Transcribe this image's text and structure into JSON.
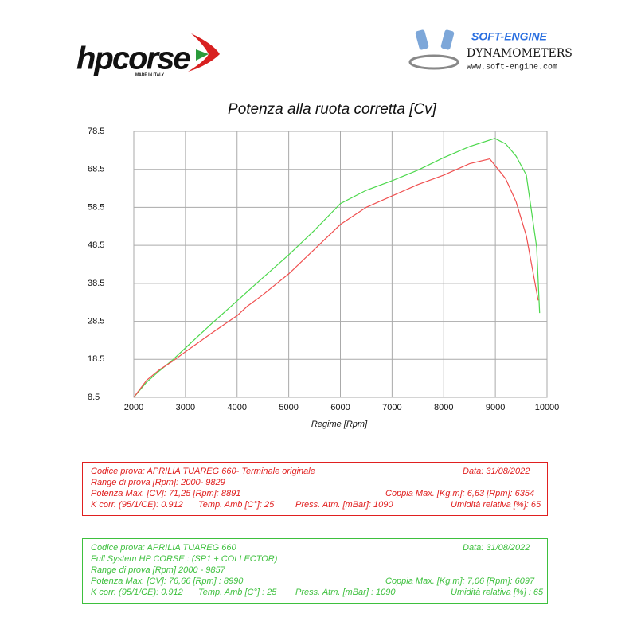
{
  "header": {
    "brand": "hpcorse",
    "brand_note": "MADE IN ITALY",
    "dyno_brand": "SOFT-ENGINE",
    "dyno_type": "DYNAMOMETERS",
    "dyno_url": "www.soft-engine.com"
  },
  "chart_data": {
    "type": "line",
    "title": "Potenza alla ruota corretta [Cv]",
    "x_label": "Regime [Rpm]",
    "xlim": [
      2000,
      10000
    ],
    "xticks": [
      2000,
      3000,
      4000,
      5000,
      6000,
      7000,
      8000,
      9000,
      10000
    ],
    "ylim": [
      8.5,
      78.5
    ],
    "yticks": [
      8.5,
      18.5,
      28.5,
      38.5,
      48.5,
      58.5,
      68.5,
      78.5
    ],
    "grid": true,
    "series": [
      {
        "color": "#4cd84c",
        "x": [
          2000,
          2250,
          2500,
          2750,
          3000,
          3500,
          4000,
          4500,
          5000,
          5500,
          6000,
          6500,
          7000,
          7500,
          8000,
          8500,
          8990,
          9200,
          9400,
          9600,
          9800,
          9857
        ],
        "values": [
          8.5,
          12.5,
          15.5,
          18.3,
          21.5,
          27.8,
          33.9,
          40,
          46,
          52.5,
          59.5,
          63,
          65.5,
          68.3,
          71.6,
          74.5,
          76.66,
          75.2,
          72,
          67,
          48,
          30.7
        ]
      },
      {
        "color": "#f05050",
        "x": [
          2000,
          2250,
          2500,
          2750,
          3000,
          3500,
          4000,
          4200,
          4500,
          5000,
          5500,
          6000,
          6500,
          7000,
          7500,
          8000,
          8500,
          8891,
          9200,
          9400,
          9600,
          9829
        ],
        "values": [
          8.5,
          13,
          15.8,
          18,
          20.5,
          25.3,
          30,
          32.5,
          35.5,
          41,
          47.5,
          54,
          58.5,
          61.5,
          64.5,
          67,
          70,
          71.25,
          66,
          60,
          51,
          34
        ]
      }
    ]
  },
  "test_boxes": [
    {
      "color": "#e02020",
      "rows": [
        [
          "Codice prova: APRILIA TUAREG 660- Terminale originale",
          "Data: 31/08/2022"
        ],
        [
          "Range di prova [Rpm]: 2000- 9829"
        ],
        [
          "Potenza Max. [CV]: 71,25 [Rpm]: 8891",
          "Coppia Max. [Kg.m]: 6,63 [Rpm]: 6354"
        ],
        [
          "K corr. (95/1/CE): 0.912",
          "Temp. Amb [C°]: 25",
          "Press. Atm. [mBar]: 1090",
          "Umidità relativa [%]: 65"
        ]
      ]
    },
    {
      "color": "#3ec03e",
      "rows": [
        [
          "Codice prova: APRILIA TUAREG 660",
          "Data: 31/08/2022"
        ],
        [
          "Full System HP CORSE : (SP1 + COLLECTOR)"
        ],
        [
          "Range di prova [Rpm] 2000 - 9857"
        ],
        [
          "Potenza Max. [CV]: 76,66 [Rpm] : 8990",
          "Coppia Max. [Kg.m]: 7,06 [Rpm]: 6097"
        ],
        [
          "K corr. (95/1/CE): 0.912",
          "Temp. Amb [C°] : 25",
          "Press. Atm. [mBar] : 1090",
          "Umidità relativa [%] : 65"
        ]
      ]
    }
  ]
}
